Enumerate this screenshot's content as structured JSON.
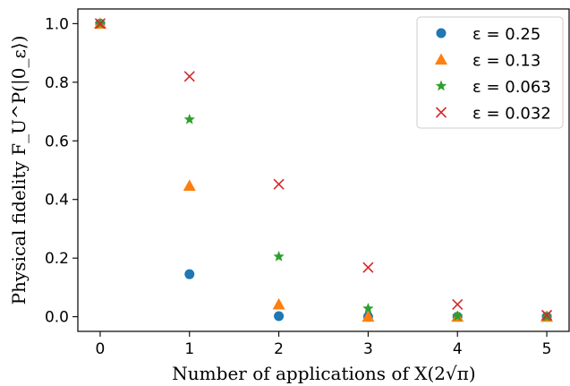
{
  "chart_data": {
    "type": "scatter",
    "xlabel": "Number of applications of X(2√π)",
    "ylabel": "Physical fidelity F_U^P(|0_ε⟩)",
    "xlim": [
      -0.25,
      5.25
    ],
    "ylim": [
      -0.05,
      1.05
    ],
    "xticks": [
      "0",
      "1",
      "2",
      "3",
      "4",
      "5"
    ],
    "yticks": [
      "0.0",
      "0.2",
      "0.4",
      "0.6",
      "0.8",
      "1.0"
    ],
    "legend_position": "top-right",
    "grid": false,
    "series": [
      {
        "name": "ε = 0.25",
        "marker": "circle",
        "color": "#1f77b4",
        "x": [
          0,
          1,
          2,
          3,
          4,
          5
        ],
        "y": [
          1.0,
          0.145,
          0.002,
          0.0,
          0.0,
          0.0
        ]
      },
      {
        "name": "ε = 0.13",
        "marker": "triangle",
        "color": "#ff7f0e",
        "x": [
          0,
          1,
          2,
          3,
          4,
          5
        ],
        "y": [
          1.0,
          0.447,
          0.042,
          0.0,
          0.0,
          0.0
        ]
      },
      {
        "name": "ε = 0.063",
        "marker": "star",
        "color": "#2ca02c",
        "x": [
          0,
          1,
          2,
          3,
          4,
          5
        ],
        "y": [
          1.0,
          0.673,
          0.205,
          0.028,
          0.002,
          0.0
        ]
      },
      {
        "name": "ε = 0.032",
        "marker": "x",
        "color": "#d62728",
        "x": [
          0,
          1,
          2,
          3,
          4,
          5
        ],
        "y": [
          1.0,
          0.82,
          0.452,
          0.168,
          0.042,
          0.005
        ]
      }
    ]
  }
}
